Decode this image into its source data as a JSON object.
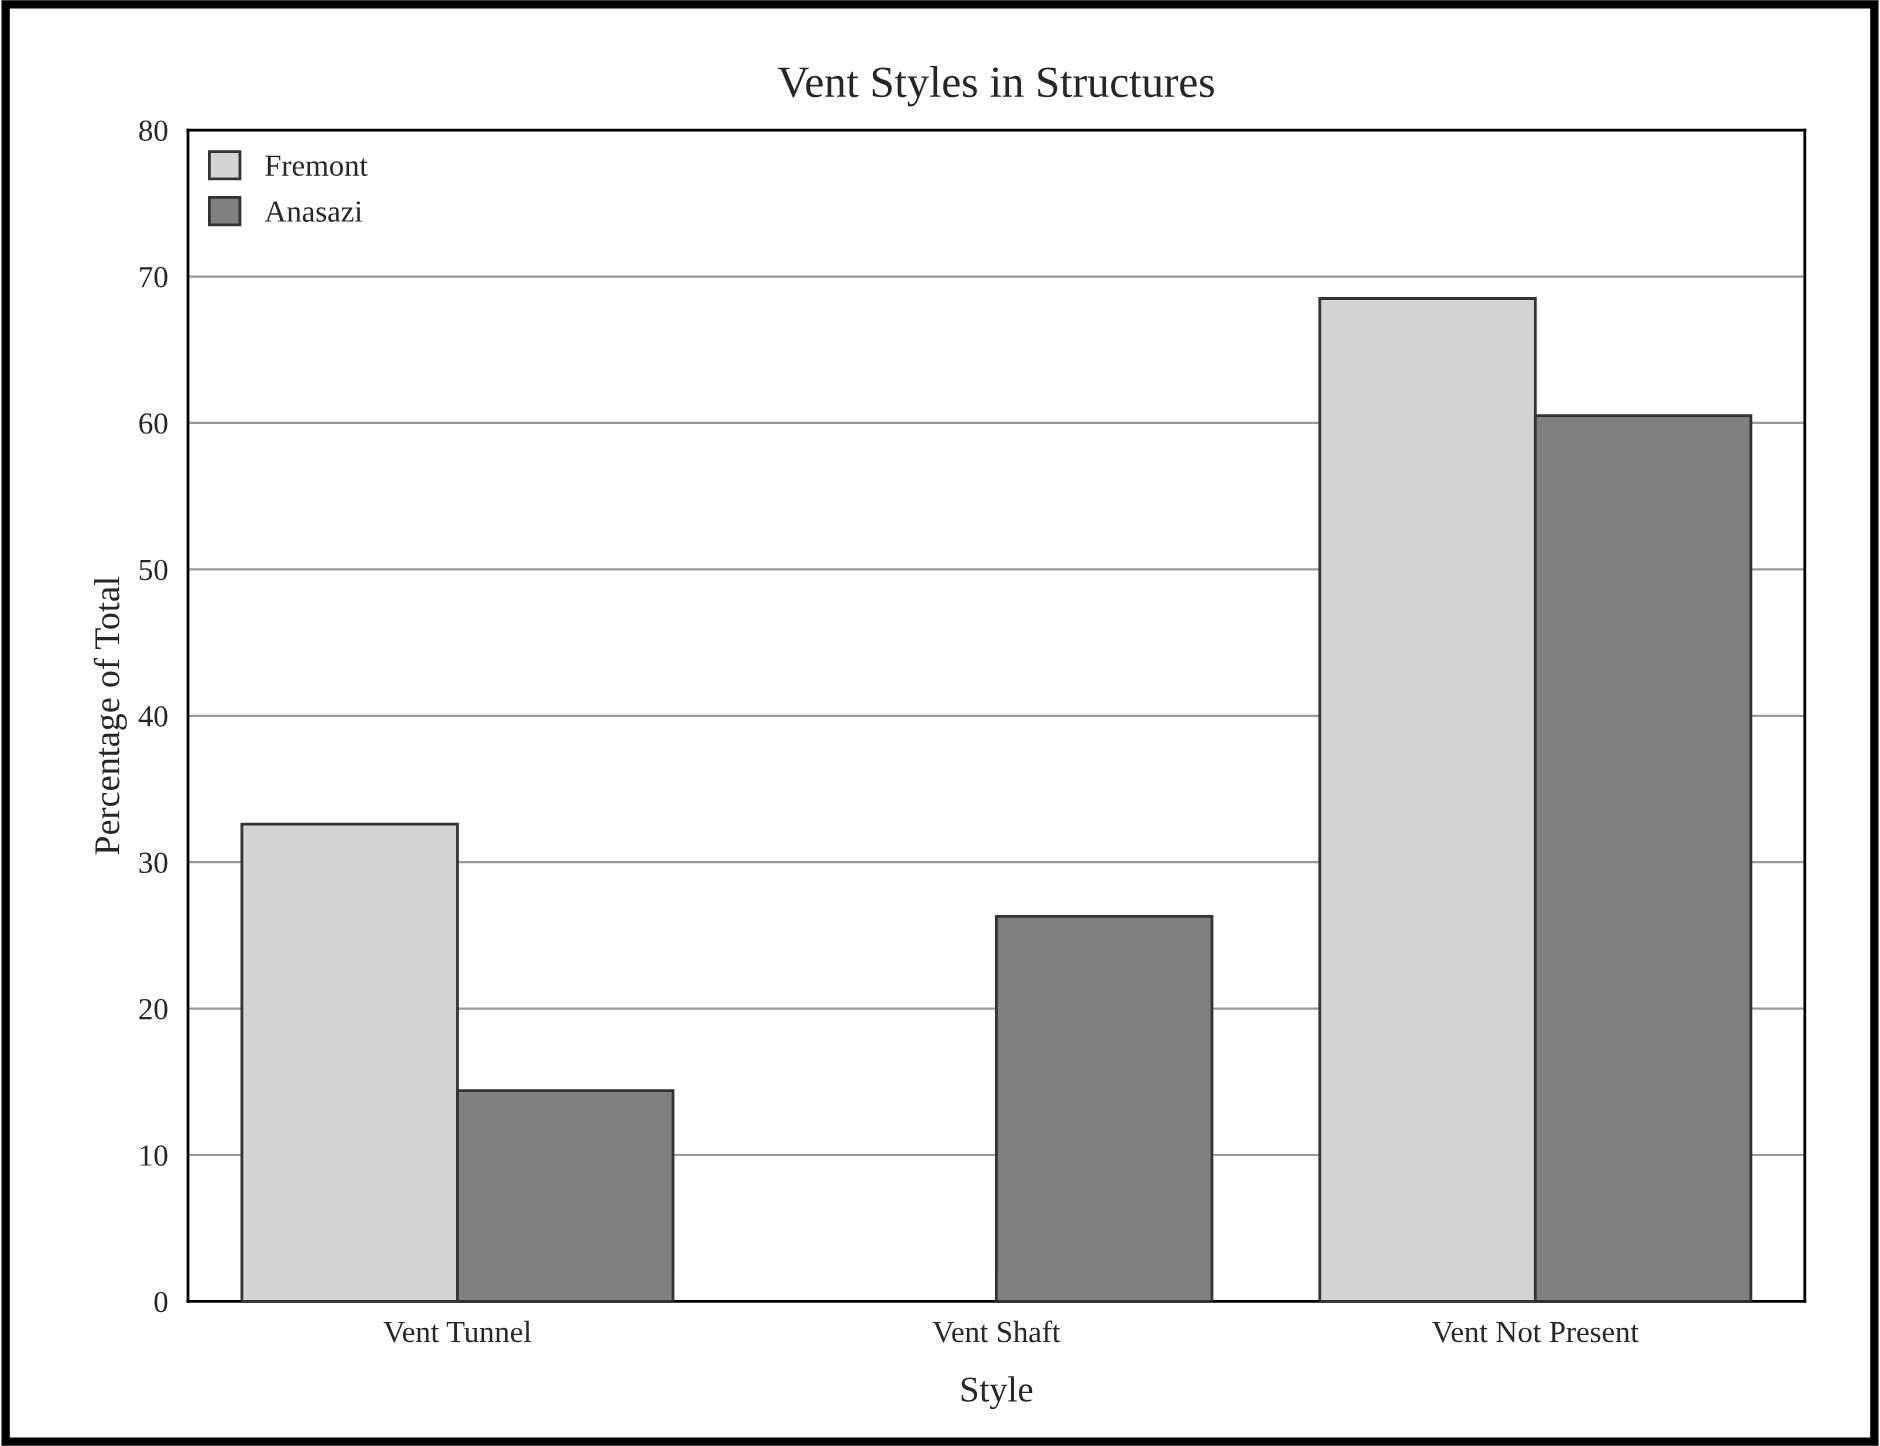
{
  "chart_data": {
    "type": "bar",
    "title": "Vent Styles in Structures",
    "xlabel": "Style",
    "ylabel": "Percentage of Total",
    "categories": [
      "Vent Tunnel",
      "Vent Shaft",
      "Vent Not Present"
    ],
    "series": [
      {
        "name": "Fremont",
        "color": "#d3d3d3",
        "values": [
          32.6,
          null,
          68.5
        ]
      },
      {
        "name": "Anasazi",
        "color": "#808080",
        "values": [
          14.4,
          26.3,
          60.5
        ]
      }
    ],
    "ylim": [
      0,
      80
    ],
    "yticks": [
      0,
      10,
      20,
      30,
      40,
      50,
      60,
      70,
      80
    ],
    "grid": "y",
    "legend": "top left"
  }
}
